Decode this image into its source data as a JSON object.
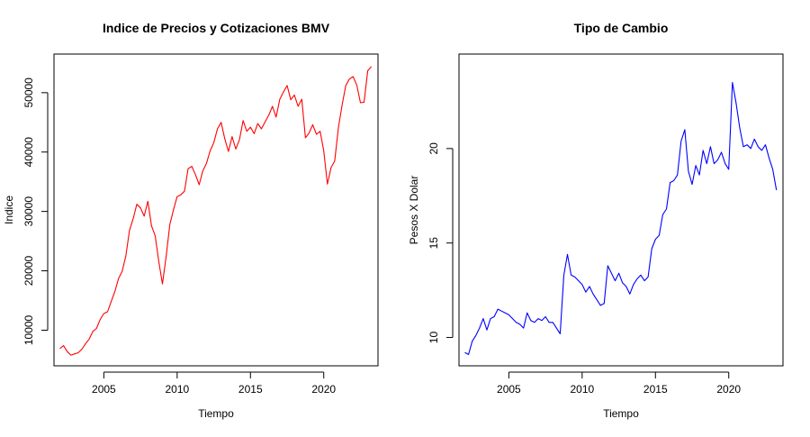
{
  "chart_data": [
    {
      "type": "line",
      "title": "Indice de Precios y Cotizaciones BMV",
      "xlabel": "Tiempo",
      "ylabel": "Indice",
      "xlim": [
        2001.6,
        2023.7
      ],
      "ylim": [
        4000,
        56500
      ],
      "xticks": [
        2005,
        2010,
        2015,
        2020
      ],
      "yticks": [
        10000,
        20000,
        30000,
        40000,
        50000
      ],
      "grid": false,
      "color": "#ff0000",
      "series": [
        {
          "x": [
            2002.0,
            2002.25,
            2002.5,
            2002.75,
            2003.0,
            2003.25,
            2003.5,
            2003.75,
            2004.0,
            2004.25,
            2004.5,
            2004.75,
            2005.0,
            2005.25,
            2005.5,
            2005.75,
            2006.0,
            2006.25,
            2006.5,
            2006.75,
            2007.0,
            2007.25,
            2007.5,
            2007.75,
            2008.0,
            2008.25,
            2008.5,
            2008.75,
            2009.0,
            2009.25,
            2009.5,
            2009.75,
            2010.0,
            2010.25,
            2010.5,
            2010.75,
            2011.0,
            2011.25,
            2011.5,
            2011.75,
            2012.0,
            2012.25,
            2012.5,
            2012.75,
            2013.0,
            2013.25,
            2013.5,
            2013.75,
            2014.0,
            2014.25,
            2014.5,
            2014.75,
            2015.0,
            2015.25,
            2015.5,
            2015.75,
            2016.0,
            2016.25,
            2016.5,
            2016.75,
            2017.0,
            2017.25,
            2017.5,
            2017.75,
            2018.0,
            2018.25,
            2018.5,
            2018.75,
            2019.0,
            2019.25,
            2019.5,
            2019.75,
            2020.0,
            2020.25,
            2020.5,
            2020.75,
            2021.0,
            2021.25,
            2021.5,
            2021.75,
            2022.0,
            2022.25,
            2022.5,
            2022.75,
            2023.0,
            2023.25
          ],
          "values": [
            6900,
            7400,
            6400,
            5800,
            6000,
            6200,
            6800,
            7700,
            8500,
            9800,
            10300,
            11800,
            12800,
            13100,
            14800,
            16500,
            18700,
            19900,
            22500,
            26800,
            28800,
            31200,
            30600,
            29200,
            31700,
            27600,
            25900,
            21500,
            17800,
            22400,
            27800,
            30300,
            32500,
            32800,
            33400,
            37200,
            37600,
            36200,
            34500,
            36800,
            38100,
            40200,
            41600,
            43900,
            45000,
            42200,
            40100,
            42600,
            40500,
            42100,
            45300,
            43500,
            44200,
            43100,
            44800,
            43900,
            45100,
            46200,
            47700,
            45900,
            48900,
            50100,
            51200,
            48800,
            49600,
            47700,
            48900,
            42400,
            43200,
            44600,
            43000,
            43500,
            40200,
            34600,
            37400,
            38500,
            44100,
            47900,
            51200,
            52300,
            52700,
            51300,
            48300,
            48400,
            53700,
            54400
          ]
        }
      ]
    },
    {
      "type": "line",
      "title": "Tipo de Cambio",
      "xlabel": "Tiempo",
      "ylabel": "Pesos X Dolar",
      "xlim": [
        2001.6,
        2023.7
      ],
      "ylim": [
        8.5,
        25.0
      ],
      "xticks": [
        2005,
        2010,
        2015,
        2020
      ],
      "yticks": [
        10,
        15,
        20
      ],
      "grid": false,
      "color": "#0000ff",
      "series": [
        {
          "x": [
            2002.0,
            2002.25,
            2002.5,
            2002.75,
            2003.0,
            2003.25,
            2003.5,
            2003.75,
            2004.0,
            2004.25,
            2004.5,
            2004.75,
            2005.0,
            2005.25,
            2005.5,
            2005.75,
            2006.0,
            2006.25,
            2006.5,
            2006.75,
            2007.0,
            2007.25,
            2007.5,
            2007.75,
            2008.0,
            2008.25,
            2008.5,
            2008.75,
            2009.0,
            2009.25,
            2009.5,
            2009.75,
            2010.0,
            2010.25,
            2010.5,
            2010.75,
            2011.0,
            2011.25,
            2011.5,
            2011.75,
            2012.0,
            2012.25,
            2012.5,
            2012.75,
            2013.0,
            2013.25,
            2013.5,
            2013.75,
            2014.0,
            2014.25,
            2014.5,
            2014.75,
            2015.0,
            2015.25,
            2015.5,
            2015.75,
            2016.0,
            2016.25,
            2016.5,
            2016.75,
            2017.0,
            2017.25,
            2017.5,
            2017.75,
            2018.0,
            2018.25,
            2018.5,
            2018.75,
            2019.0,
            2019.25,
            2019.5,
            2019.75,
            2020.0,
            2020.25,
            2020.5,
            2020.75,
            2021.0,
            2021.25,
            2021.5,
            2021.75,
            2022.0,
            2022.25,
            2022.5,
            2022.75,
            2023.0,
            2023.25
          ],
          "values": [
            9.2,
            9.1,
            9.8,
            10.1,
            10.5,
            11.0,
            10.4,
            11.0,
            11.1,
            11.5,
            11.4,
            11.3,
            11.2,
            11.0,
            10.8,
            10.7,
            10.5,
            11.3,
            10.9,
            10.8,
            11.0,
            10.9,
            11.1,
            10.8,
            10.8,
            10.5,
            10.2,
            13.3,
            14.4,
            13.3,
            13.2,
            13.0,
            12.8,
            12.4,
            12.7,
            12.3,
            12.0,
            11.7,
            11.8,
            13.8,
            13.4,
            13.0,
            13.4,
            12.9,
            12.7,
            12.3,
            12.8,
            13.1,
            13.3,
            13.0,
            13.2,
            14.7,
            15.2,
            15.4,
            16.5,
            16.8,
            18.2,
            18.3,
            18.6,
            20.4,
            21.0,
            18.8,
            18.1,
            19.1,
            18.6,
            19.9,
            19.2,
            20.1,
            19.2,
            19.4,
            19.8,
            19.2,
            18.9,
            23.5,
            22.4,
            21.1,
            20.1,
            20.2,
            20.0,
            20.5,
            20.1,
            19.9,
            20.2,
            19.5,
            18.9,
            17.8
          ]
        }
      ]
    }
  ]
}
